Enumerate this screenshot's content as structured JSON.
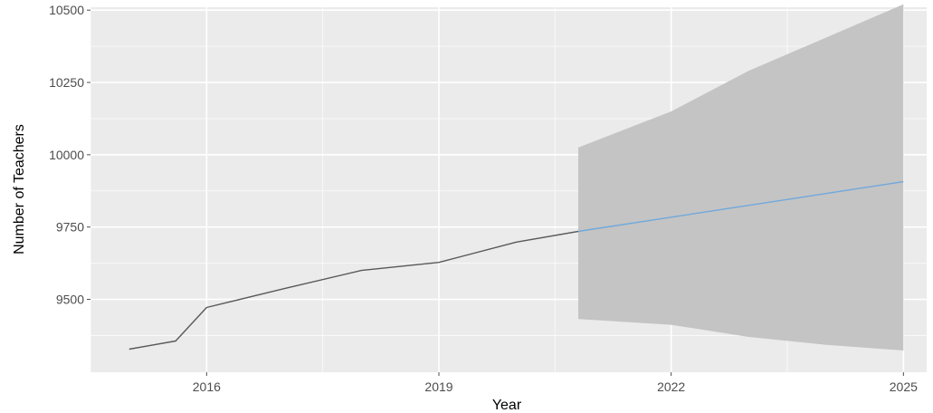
{
  "chart_data": {
    "type": "line",
    "title": "",
    "xlabel": "Year",
    "ylabel": "Number of Teachers",
    "xlim": [
      2014.5,
      2025.3
    ],
    "ylim": [
      9248,
      10510
    ],
    "x_ticks": [
      2016,
      2019,
      2022,
      2025
    ],
    "x_tick_labels": [
      "2016",
      "2019",
      "2022",
      "2025"
    ],
    "y_ticks": [
      9500,
      9750,
      10000,
      10250,
      10500
    ],
    "y_tick_labels": [
      "9500",
      "9750",
      "10000",
      "10250",
      "10500"
    ],
    "grid": true,
    "legend": "none",
    "series": [
      {
        "role": "observed",
        "color": "#595959",
        "points": [
          {
            "x": 2015.0,
            "y": 9328
          },
          {
            "x": 2015.6,
            "y": 9356
          },
          {
            "x": 2016.0,
            "y": 9472
          },
          {
            "x": 2017.0,
            "y": 9537
          },
          {
            "x": 2018.0,
            "y": 9600
          },
          {
            "x": 2019.0,
            "y": 9628
          },
          {
            "x": 2020.0,
            "y": 9698
          },
          {
            "x": 2020.8,
            "y": 9735
          }
        ]
      },
      {
        "role": "forecast",
        "color": "#6fa8dc",
        "points": [
          {
            "x": 2020.8,
            "y": 9735
          },
          {
            "x": 2025.0,
            "y": 9907
          }
        ]
      }
    ],
    "ribbon": {
      "color": "#c4c4c4",
      "points": [
        {
          "x": 2020.8,
          "lower": 9432,
          "upper": 10025
        },
        {
          "x": 2022.0,
          "lower": 9412,
          "upper": 10150
        },
        {
          "x": 2023.0,
          "lower": 9370,
          "upper": 10290
        },
        {
          "x": 2024.0,
          "lower": 9343,
          "upper": 10405
        },
        {
          "x": 2025.0,
          "lower": 9323,
          "upper": 10520
        }
      ]
    },
    "panel_background": "#ebebeb",
    "grid_color": "#ffffff"
  }
}
